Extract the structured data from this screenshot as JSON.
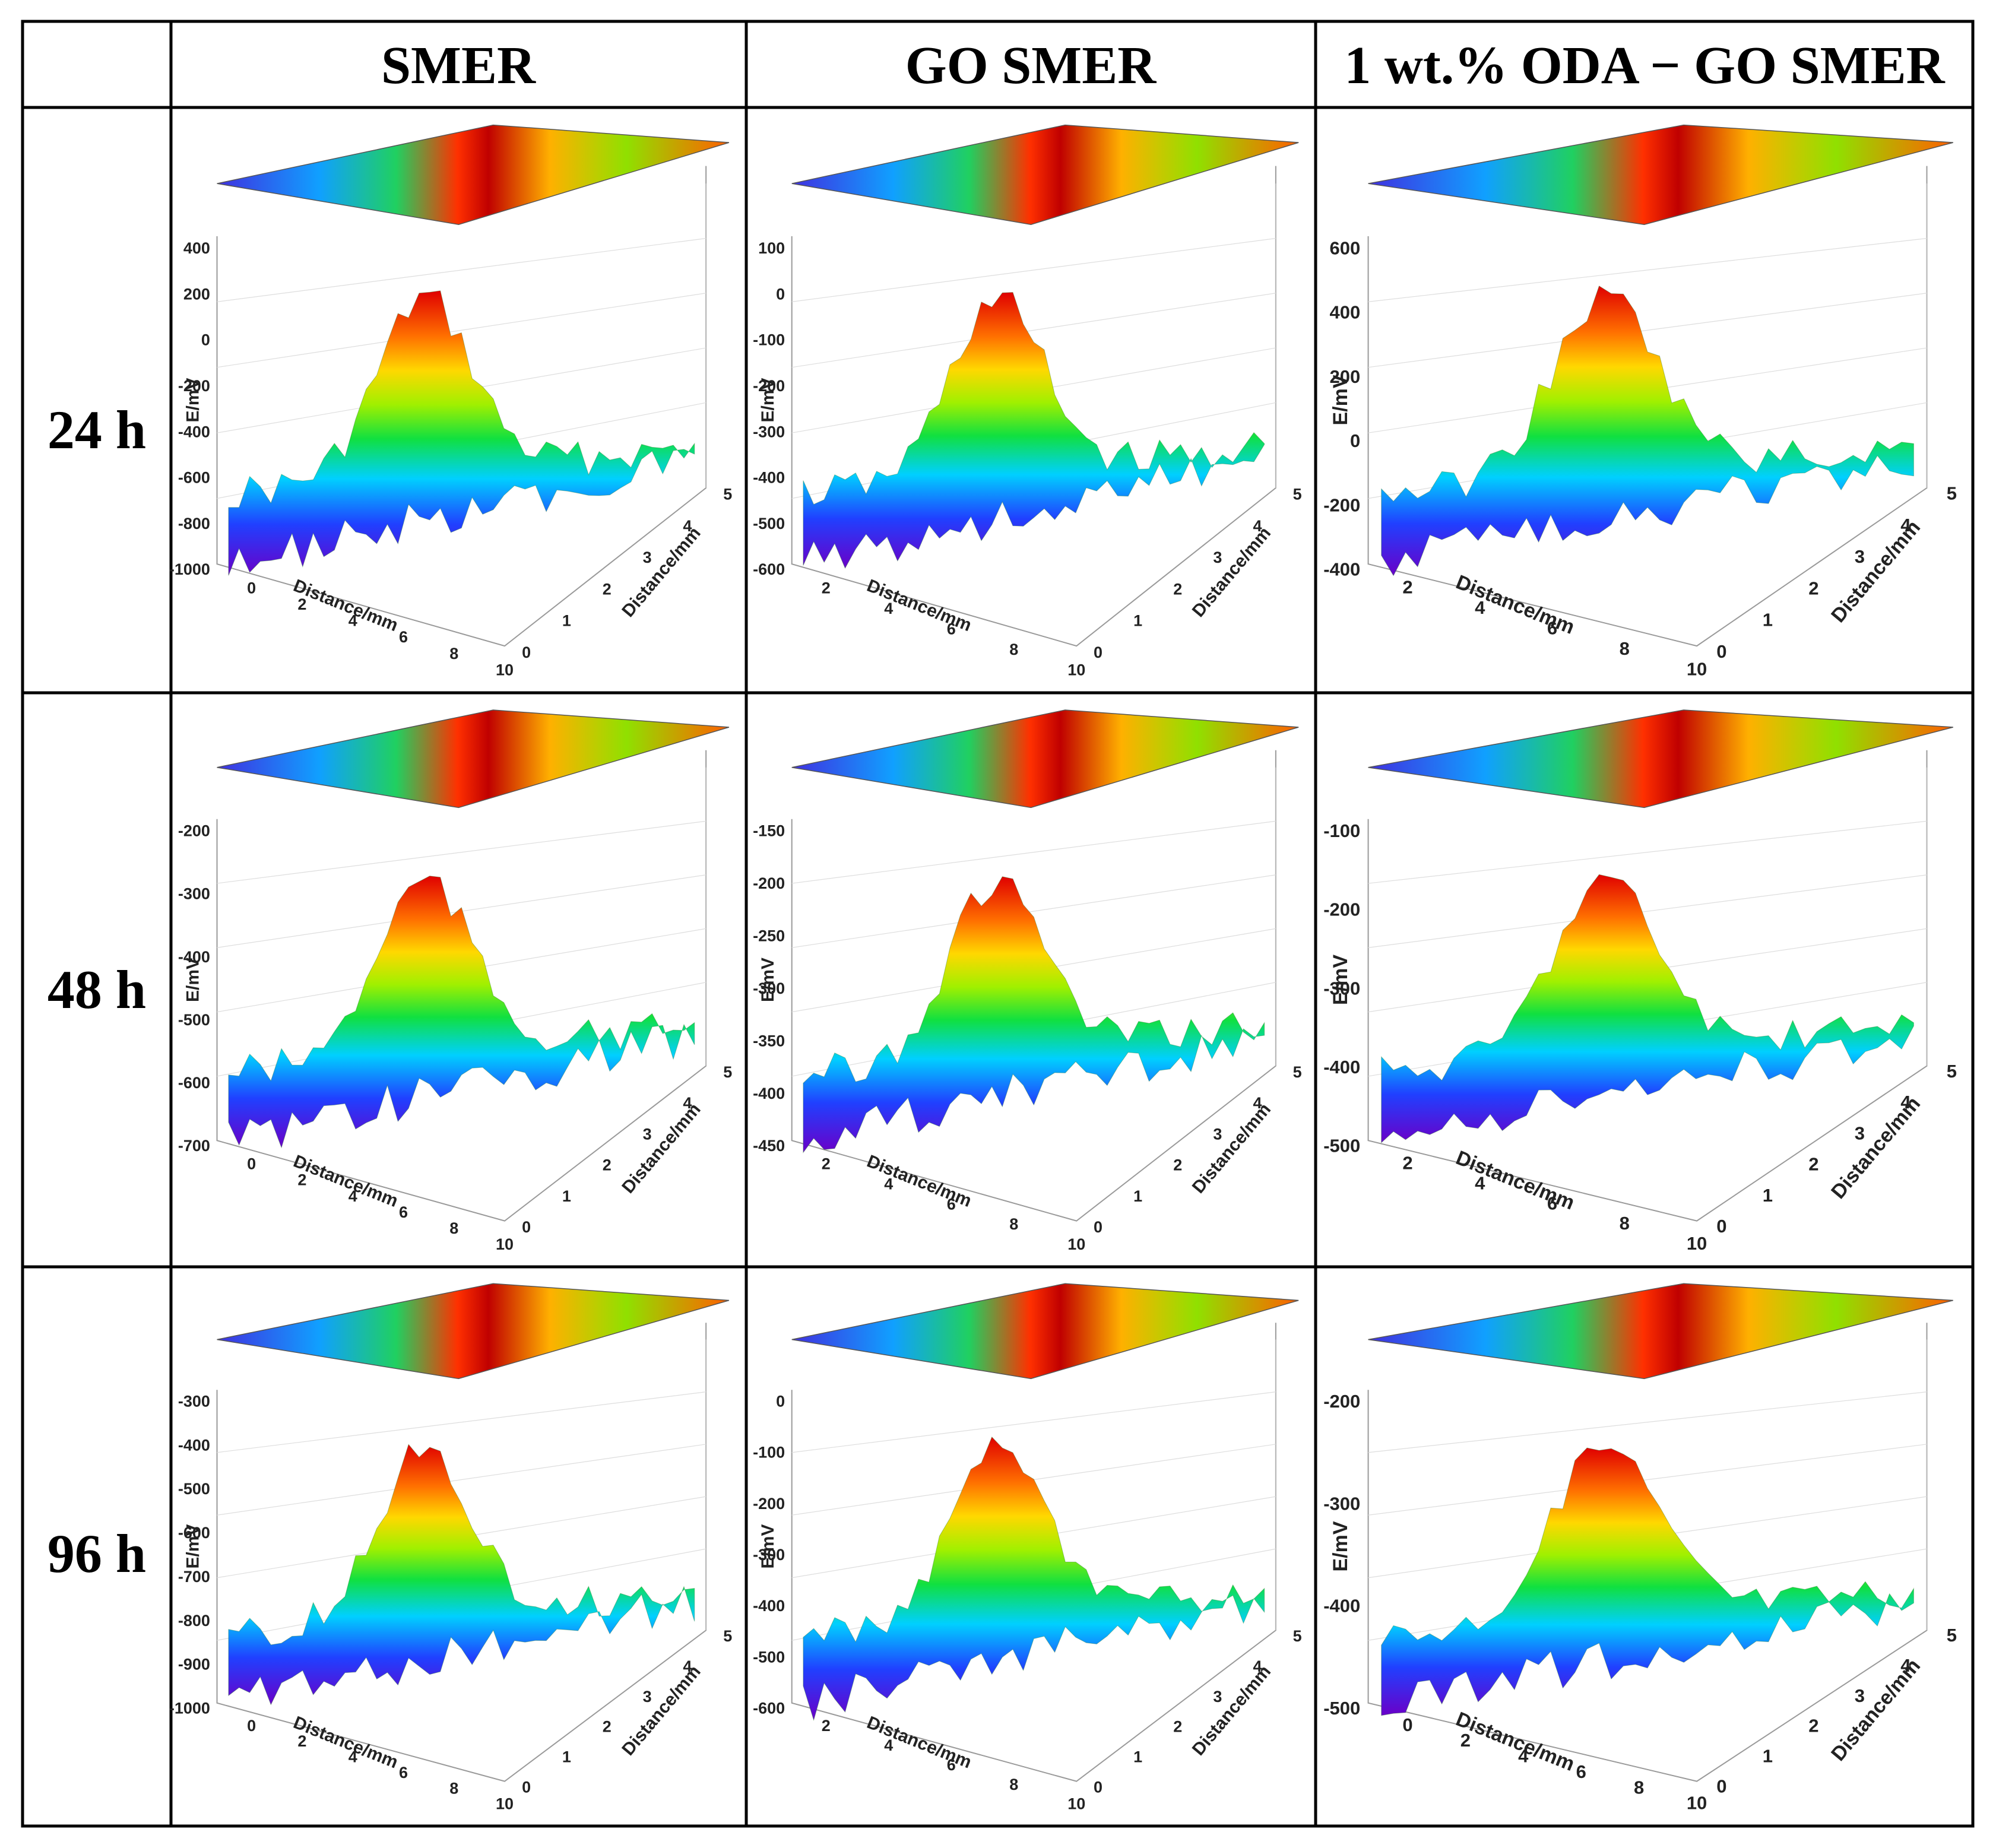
{
  "table": {
    "headers": [
      "",
      "SMER",
      "GO SMER",
      "1 wt.% ODA − GO SMER"
    ],
    "rows": [
      "24 h",
      "48 h",
      "96 h"
    ]
  },
  "chart_data": [
    {
      "type": "surface3d",
      "sample": "SMER",
      "time": "24 h",
      "zlabel": "E/mV",
      "xlabel": "Distance/mm",
      "ylabel": "Distance/mm",
      "zticks": [
        "400",
        "200",
        "0",
        "-200",
        "-400",
        "-600",
        "-800",
        "-1000"
      ],
      "xticks": [
        "0",
        "2",
        "4",
        "6",
        "8",
        "10"
      ],
      "yticks": [
        "0",
        "1",
        "2",
        "3",
        "4",
        "5"
      ],
      "zlim": [
        -1000,
        400
      ],
      "xlim": [
        0,
        10
      ],
      "ylim": [
        0,
        5
      ]
    },
    {
      "type": "surface3d",
      "sample": "GO SMER",
      "time": "24 h",
      "zlabel": "E/mV",
      "xlabel": "Distance/mm",
      "ylabel": "Distance/mm",
      "zticks": [
        "100",
        "0",
        "-100",
        "-200",
        "-300",
        "-400",
        "-500",
        "-600"
      ],
      "xticks": [
        "2",
        "4",
        "6",
        "8",
        "10"
      ],
      "yticks": [
        "0",
        "1",
        "2",
        "3",
        "4",
        "5"
      ],
      "zlim": [
        -600,
        100
      ],
      "xlim": [
        0,
        10
      ],
      "ylim": [
        0,
        5
      ]
    },
    {
      "type": "surface3d",
      "sample": "1 wt.% ODA − GO SMER",
      "time": "24 h",
      "zlabel": "E/mV",
      "xlabel": "Distance/mm",
      "ylabel": "Distance/mm",
      "zticks": [
        "600",
        "400",
        "200",
        "0",
        "-200",
        "-400"
      ],
      "xticks": [
        "2",
        "4",
        "6",
        "8",
        "10"
      ],
      "yticks": [
        "0",
        "1",
        "2",
        "3",
        "4",
        "5"
      ],
      "zlim": [
        -400,
        600
      ],
      "xlim": [
        0,
        10
      ],
      "ylim": [
        0,
        5
      ]
    },
    {
      "type": "surface3d",
      "sample": "SMER",
      "time": "48 h",
      "zlabel": "E/mV",
      "xlabel": "Distance/mm",
      "ylabel": "Distance/mm",
      "zticks": [
        "-200",
        "-300",
        "-400",
        "-500",
        "-600",
        "-700"
      ],
      "xticks": [
        "0",
        "2",
        "4",
        "6",
        "8",
        "10"
      ],
      "yticks": [
        "0",
        "1",
        "2",
        "3",
        "4",
        "5"
      ],
      "zlim": [
        -700,
        -200
      ],
      "xlim": [
        0,
        10
      ],
      "ylim": [
        0,
        5
      ]
    },
    {
      "type": "surface3d",
      "sample": "GO SMER",
      "time": "48 h",
      "zlabel": "E/mV",
      "xlabel": "Distance/mm",
      "ylabel": "Distance/mm",
      "zticks": [
        "-150",
        "-200",
        "-250",
        "-300",
        "-350",
        "-400",
        "-450"
      ],
      "xticks": [
        "2",
        "4",
        "6",
        "8",
        "10"
      ],
      "yticks": [
        "0",
        "1",
        "2",
        "3",
        "4",
        "5"
      ],
      "zlim": [
        -450,
        -150
      ],
      "xlim": [
        0,
        10
      ],
      "ylim": [
        0,
        5
      ]
    },
    {
      "type": "surface3d",
      "sample": "1 wt.% ODA − GO SMER",
      "time": "48 h",
      "zlabel": "E/mV",
      "xlabel": "Distance/mm",
      "ylabel": "Distance/mm",
      "zticks": [
        "-100",
        "-200",
        "-300",
        "-400",
        "-500"
      ],
      "xticks": [
        "2",
        "4",
        "6",
        "8",
        "10"
      ],
      "yticks": [
        "0",
        "1",
        "2",
        "3",
        "4",
        "5"
      ],
      "zlim": [
        -500,
        -100
      ],
      "xlim": [
        0,
        10
      ],
      "ylim": [
        0,
        5
      ]
    },
    {
      "type": "surface3d",
      "sample": "SMER",
      "time": "96 h",
      "zlabel": "E/mV",
      "xlabel": "Distance/mm",
      "ylabel": "Distance/mm",
      "zticks": [
        "-300",
        "-400",
        "-500",
        "-600",
        "-700",
        "-800",
        "-900",
        "-1000"
      ],
      "xticks": [
        "0",
        "2",
        "4",
        "6",
        "8",
        "10"
      ],
      "yticks": [
        "0",
        "1",
        "2",
        "3",
        "4",
        "5"
      ],
      "zlim": [
        -1000,
        -300
      ],
      "xlim": [
        0,
        10
      ],
      "ylim": [
        0,
        5
      ]
    },
    {
      "type": "surface3d",
      "sample": "GO SMER",
      "time": "96 h",
      "zlabel": "E/mV",
      "xlabel": "Distance/mm",
      "ylabel": "Distance/mm",
      "zticks": [
        "0",
        "-100",
        "-200",
        "-300",
        "-400",
        "-500",
        "-600"
      ],
      "xticks": [
        "2",
        "4",
        "6",
        "8",
        "10"
      ],
      "yticks": [
        "0",
        "1",
        "2",
        "3",
        "4",
        "5"
      ],
      "zlim": [
        -600,
        0
      ],
      "xlim": [
        0,
        10
      ],
      "ylim": [
        0,
        5
      ]
    },
    {
      "type": "surface3d",
      "sample": "1 wt.% ODA − GO SMER",
      "time": "96 h",
      "zlabel": "E/mV",
      "xlabel": "Distance/mm",
      "ylabel": "Distance/mm",
      "zticks": [
        "-200",
        "-300",
        "-400",
        "-500"
      ],
      "xticks": [
        "0",
        "2",
        "4",
        "6",
        "8",
        "10"
      ],
      "yticks": [
        "0",
        "1",
        "2",
        "3",
        "4",
        "5"
      ],
      "zlim": [
        -500,
        -200
      ],
      "xlim": [
        0,
        10
      ],
      "ylim": [
        0,
        5
      ]
    }
  ]
}
